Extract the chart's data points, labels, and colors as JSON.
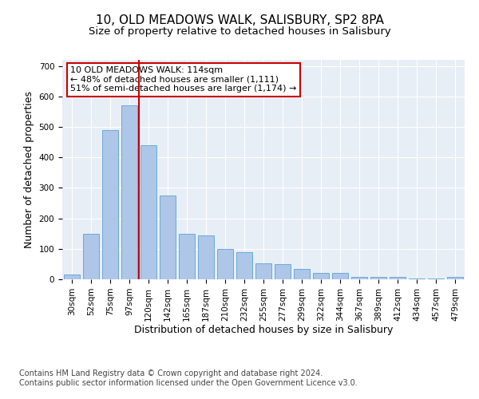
{
  "title": "10, OLD MEADOWS WALK, SALISBURY, SP2 8PA",
  "subtitle": "Size of property relative to detached houses in Salisbury",
  "xlabel": "Distribution of detached houses by size in Salisbury",
  "ylabel": "Number of detached properties",
  "categories": [
    "30sqm",
    "52sqm",
    "75sqm",
    "97sqm",
    "120sqm",
    "142sqm",
    "165sqm",
    "187sqm",
    "210sqm",
    "232sqm",
    "255sqm",
    "277sqm",
    "299sqm",
    "322sqm",
    "344sqm",
    "367sqm",
    "389sqm",
    "412sqm",
    "434sqm",
    "457sqm",
    "479sqm"
  ],
  "values": [
    15,
    150,
    490,
    570,
    440,
    275,
    148,
    145,
    100,
    90,
    52,
    50,
    35,
    20,
    20,
    8,
    8,
    8,
    2,
    2,
    8
  ],
  "bar_color": "#aec6e8",
  "bar_edge_color": "#6aaad4",
  "vline_x": 3.5,
  "vline_color": "#cc0000",
  "annotation_text": "10 OLD MEADOWS WALK: 114sqm\n← 48% of detached houses are smaller (1,111)\n51% of semi-detached houses are larger (1,174) →",
  "annotation_box_color": "#ffffff",
  "annotation_box_edge": "#cc0000",
  "ylim": [
    0,
    720
  ],
  "yticks": [
    0,
    100,
    200,
    300,
    400,
    500,
    600,
    700
  ],
  "bg_color": "#e8eef6",
  "fig_bg": "#ffffff",
  "footer": "Contains HM Land Registry data © Crown copyright and database right 2024.\nContains public sector information licensed under the Open Government Licence v3.0.",
  "title_fontsize": 11,
  "subtitle_fontsize": 9.5,
  "tick_fontsize": 7.5,
  "label_fontsize": 9,
  "footer_fontsize": 7,
  "annotation_fontsize": 8
}
